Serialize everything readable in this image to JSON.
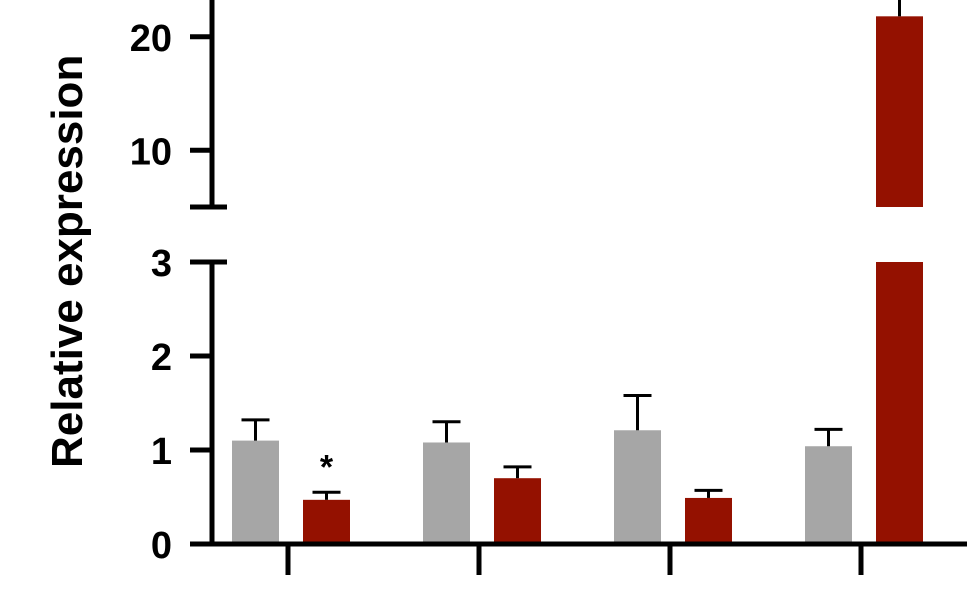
{
  "chart_data": {
    "type": "bar",
    "ylabel": "Relative expression",
    "broken_axis": true,
    "lower_segment_ylim": [
      0,
      3
    ],
    "upper_segment_ylim": [
      5,
      25
    ],
    "lower_ticks": [
      "0",
      "1",
      "2",
      "3"
    ],
    "upper_ticks": [
      "10",
      "20"
    ],
    "grid": false,
    "legend": "none",
    "colors": [
      "#a6a6a6",
      "#941100"
    ],
    "groups": [
      {
        "bars": [
          {
            "value": 1.1,
            "error": 0.22
          },
          {
            "value": 0.47,
            "error": 0.08,
            "annotation": "*"
          }
        ]
      },
      {
        "bars": [
          {
            "value": 1.08,
            "error": 0.22
          },
          {
            "value": 0.7,
            "error": 0.12
          }
        ]
      },
      {
        "bars": [
          {
            "value": 1.21,
            "error": 0.37
          },
          {
            "value": 0.49,
            "error": 0.08
          }
        ]
      },
      {
        "bars": [
          {
            "value": 1.04,
            "error": 0.18
          },
          {
            "value": 21.8,
            "error": 2.0
          }
        ]
      }
    ]
  }
}
